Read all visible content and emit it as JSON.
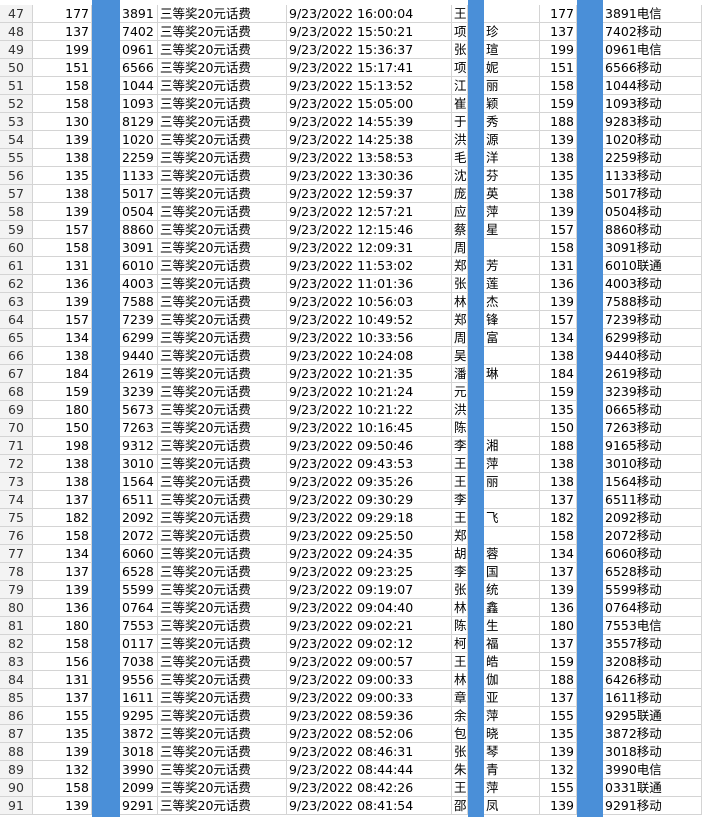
{
  "table": {
    "rows": [
      [
        "47",
        "177",
        "3891",
        "三等奖20元话费",
        "9/23/2022 16:00:04",
        "王",
        null,
        "177",
        "3891电信"
      ],
      [
        "48",
        "137",
        "7402",
        "三等奖20元话费",
        "9/23/2022 15:50:21",
        "项",
        "珍",
        "137",
        "7402移动"
      ],
      [
        "49",
        "199",
        "0961",
        "三等奖20元话费",
        "9/23/2022 15:36:37",
        "张",
        "瑄",
        "199",
        "0961电信"
      ],
      [
        "50",
        "151",
        "6566",
        "三等奖20元话费",
        "9/23/2022 15:17:41",
        "项",
        "妮",
        "151",
        "6566移动"
      ],
      [
        "51",
        "158",
        "1044",
        "三等奖20元话费",
        "9/23/2022 15:13:52",
        "江",
        "丽",
        "158",
        "1044移动"
      ],
      [
        "52",
        "158",
        "1093",
        "三等奖20元话费",
        "9/23/2022 15:05:00",
        "崔",
        "颖",
        "159",
        "1093移动"
      ],
      [
        "53",
        "130",
        "8129",
        "三等奖20元话费",
        "9/23/2022 14:55:39",
        "于",
        "秀",
        "188",
        "9283移动"
      ],
      [
        "54",
        "139",
        "1020",
        "三等奖20元话费",
        "9/23/2022 14:25:38",
        "洪",
        "源",
        "139",
        "1020移动"
      ],
      [
        "55",
        "138",
        "2259",
        "三等奖20元话费",
        "9/23/2022 13:58:53",
        "毛",
        "洋",
        "138",
        "2259移动"
      ],
      [
        "56",
        "135",
        "1133",
        "三等奖20元话费",
        "9/23/2022 13:30:36",
        "沈",
        "芬",
        "135",
        "1133移动"
      ],
      [
        "57",
        "138",
        "5017",
        "三等奖20元话费",
        "9/23/2022 12:59:37",
        "庞",
        "英",
        "138",
        "5017移动"
      ],
      [
        "58",
        "139",
        "0504",
        "三等奖20元话费",
        "9/23/2022 12:57:21",
        "应",
        "萍",
        "139",
        "0504移动"
      ],
      [
        "59",
        "157",
        "8860",
        "三等奖20元话费",
        "9/23/2022 12:15:46",
        "蔡",
        "星",
        "157",
        "8860移动"
      ],
      [
        "60",
        "158",
        "3091",
        "三等奖20元话费",
        "9/23/2022 12:09:31",
        "周",
        null,
        "158",
        "3091移动"
      ],
      [
        "61",
        "131",
        "6010",
        "三等奖20元话费",
        "9/23/2022 11:53:02",
        "郑",
        "芳",
        "131",
        "6010联通"
      ],
      [
        "62",
        "136",
        "4003",
        "三等奖20元话费",
        "9/23/2022 11:01:36",
        "张",
        "莲",
        "136",
        "4003移动"
      ],
      [
        "63",
        "139",
        "7588",
        "三等奖20元话费",
        "9/23/2022 10:56:03",
        "林",
        "杰",
        "139",
        "7588移动"
      ],
      [
        "64",
        "157",
        "7239",
        "三等奖20元话费",
        "9/23/2022 10:49:52",
        "郑",
        "锋",
        "157",
        "7239移动"
      ],
      [
        "65",
        "134",
        "6299",
        "三等奖20元话费",
        "9/23/2022 10:33:56",
        "周",
        "富",
        "134",
        "6299移动"
      ],
      [
        "66",
        "138",
        "9440",
        "三等奖20元话费",
        "9/23/2022 10:24:08",
        "吴",
        null,
        "138",
        "9440移动"
      ],
      [
        "67",
        "184",
        "2619",
        "三等奖20元话费",
        "9/23/2022 10:21:35",
        "潘",
        "琳",
        "184",
        "2619移动"
      ],
      [
        "68",
        "159",
        "3239",
        "三等奖20元话费",
        "9/23/2022 10:21:24",
        "元",
        null,
        "159",
        "3239移动"
      ],
      [
        "69",
        "180",
        "5673",
        "三等奖20元话费",
        "9/23/2022 10:21:22",
        "洪",
        null,
        "135",
        "0665移动"
      ],
      [
        "70",
        "150",
        "7263",
        "三等奖20元话费",
        "9/23/2022 10:16:45",
        "陈",
        null,
        "150",
        "7263移动"
      ],
      [
        "71",
        "198",
        "9312",
        "三等奖20元话费",
        "9/23/2022 09:50:46",
        "李",
        "湘",
        "188",
        "9165移动"
      ],
      [
        "72",
        "138",
        "3010",
        "三等奖20元话费",
        "9/23/2022 09:43:53",
        "王",
        "萍",
        "138",
        "3010移动"
      ],
      [
        "73",
        "138",
        "1564",
        "三等奖20元话费",
        "9/23/2022 09:35:26",
        "王",
        "丽",
        "138",
        "1564移动"
      ],
      [
        "74",
        "137",
        "6511",
        "三等奖20元话费",
        "9/23/2022 09:30:29",
        "李",
        null,
        "137",
        "6511移动"
      ],
      [
        "75",
        "182",
        "2092",
        "三等奖20元话费",
        "9/23/2022 09:29:18",
        "王",
        "飞",
        "182",
        "2092移动"
      ],
      [
        "76",
        "158",
        "2072",
        "三等奖20元话费",
        "9/23/2022 09:25:50",
        "郑",
        null,
        "158",
        "2072移动"
      ],
      [
        "77",
        "134",
        "6060",
        "三等奖20元话费",
        "9/23/2022 09:24:35",
        "胡",
        "蓉",
        "134",
        "6060移动"
      ],
      [
        "78",
        "137",
        "6528",
        "三等奖20元话费",
        "9/23/2022 09:23:25",
        "李",
        "国",
        "137",
        "6528移动"
      ],
      [
        "79",
        "139",
        "5599",
        "三等奖20元话费",
        "9/23/2022 09:19:07",
        "张",
        "统",
        "139",
        "5599移动"
      ],
      [
        "80",
        "136",
        "0764",
        "三等奖20元话费",
        "9/23/2022 09:04:40",
        "林",
        "鑫",
        "136",
        "0764移动"
      ],
      [
        "81",
        "180",
        "7553",
        "三等奖20元话费",
        "9/23/2022 09:02:21",
        "陈",
        "生",
        "180",
        "7553电信"
      ],
      [
        "82",
        "158",
        "0117",
        "三等奖20元话费",
        "9/23/2022 09:02:12",
        "柯",
        "福",
        "137",
        "3557移动"
      ],
      [
        "83",
        "156",
        "7038",
        "三等奖20元话费",
        "9/23/2022 09:00:57",
        "王",
        "皓",
        "159",
        "3208移动"
      ],
      [
        "84",
        "131",
        "9556",
        "三等奖20元话费",
        "9/23/2022 09:00:33",
        "林",
        "伽",
        "188",
        "6426移动"
      ],
      [
        "85",
        "137",
        "1611",
        "三等奖20元话费",
        "9/23/2022 09:00:33",
        "章",
        "亚",
        "137",
        "1611移动"
      ],
      [
        "86",
        "155",
        "9295",
        "三等奖20元话费",
        "9/23/2022 08:59:36",
        "余",
        "萍",
        "155",
        "9295联通"
      ],
      [
        "87",
        "135",
        "3872",
        "三等奖20元话费",
        "9/23/2022 08:52:06",
        "包",
        "晓",
        "135",
        "3872移动"
      ],
      [
        "88",
        "139",
        "3018",
        "三等奖20元话费",
        "9/23/2022 08:46:31",
        "张",
        "琴",
        "139",
        "3018移动"
      ],
      [
        "89",
        "132",
        "3990",
        "三等奖20元话费",
        "9/23/2022 08:44:44",
        "朱",
        "青",
        "132",
        "3990电信"
      ],
      [
        "90",
        "158",
        "2099",
        "三等奖20元话费",
        "9/23/2022 08:42:26",
        "王",
        "萍",
        "155",
        "0331联通"
      ],
      [
        "91",
        "139",
        "9291",
        "三等奖20元话费",
        "9/23/2022 08:41:54",
        "邵",
        "凤",
        "139",
        "9291移动"
      ]
    ]
  }
}
